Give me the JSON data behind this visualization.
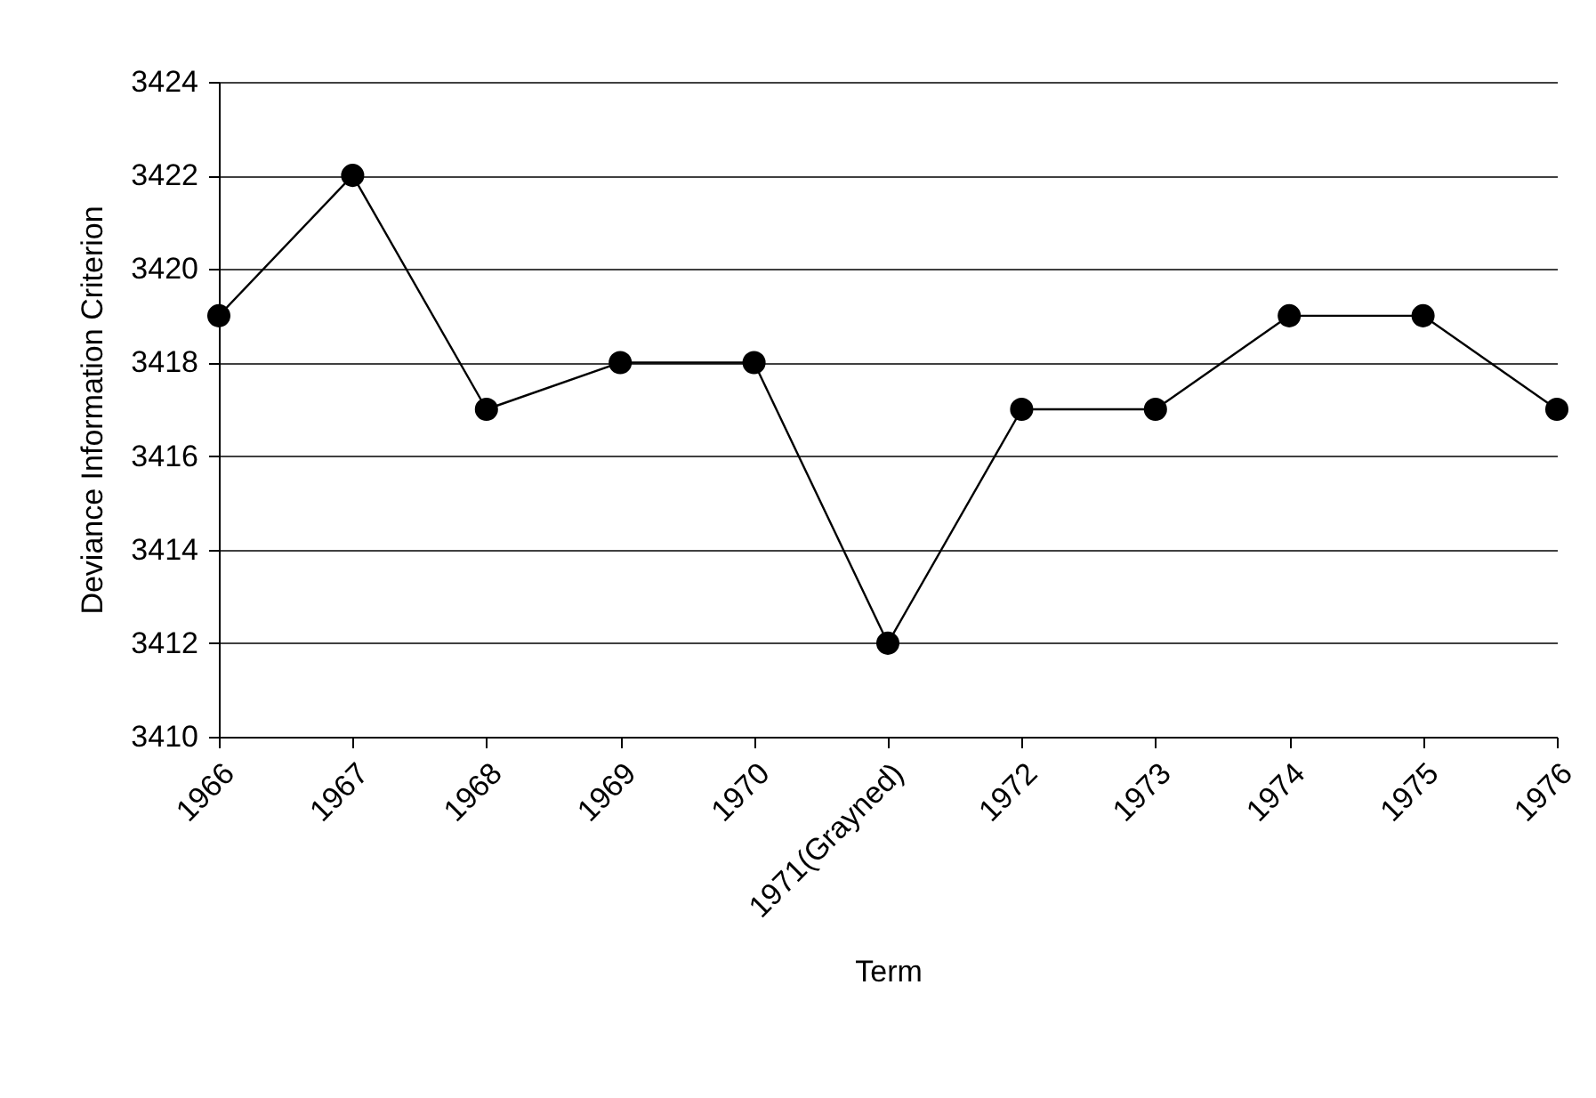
{
  "chart_data": {
    "type": "line",
    "xlabel": "Term",
    "ylabel": "Deviance Information Criterion",
    "categories": [
      "1966",
      "1967",
      "1968",
      "1969",
      "1970",
      "1971(Grayned)",
      "1972",
      "1973",
      "1974",
      "1975",
      "1976"
    ],
    "series": [
      {
        "color": "#000000",
        "values": [
          3419,
          3422,
          3417,
          3418,
          3418,
          3412,
          3417,
          3417,
          3419,
          3419,
          3417
        ]
      }
    ],
    "ylim": [
      3410,
      3424
    ],
    "yticks": [
      3410,
      3412,
      3414,
      3416,
      3418,
      3420,
      3422,
      3424
    ],
    "grid": "y",
    "marker": "circle",
    "line_style": "solid"
  }
}
